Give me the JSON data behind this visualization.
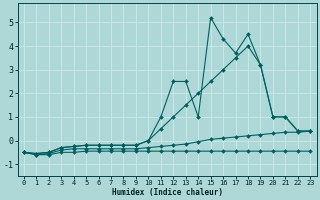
{
  "xlabel": "Humidex (Indice chaleur)",
  "bg_color": "#aed8d8",
  "grid_color": "#c8e8e8",
  "line_color": "#006060",
  "xlim": [
    -0.5,
    23.5
  ],
  "ylim": [
    -1.5,
    5.8
  ],
  "xticks": [
    0,
    1,
    2,
    3,
    4,
    5,
    6,
    7,
    8,
    9,
    10,
    11,
    12,
    13,
    14,
    15,
    16,
    17,
    18,
    19,
    20,
    21,
    22,
    23
  ],
  "yticks": [
    -1,
    0,
    1,
    2,
    3,
    4,
    5
  ],
  "series": [
    {
      "x": [
        0,
        1,
        2,
        3,
        4,
        5,
        6,
        7,
        8,
        9,
        10,
        11,
        12,
        13,
        14,
        15,
        16,
        17,
        18,
        19,
        20,
        21,
        22,
        23
      ],
      "y": [
        -0.5,
        -0.6,
        -0.6,
        -0.5,
        -0.5,
        -0.45,
        -0.45,
        -0.45,
        -0.45,
        -0.45,
        -0.45,
        -0.45,
        -0.45,
        -0.45,
        -0.45,
        -0.45,
        -0.45,
        -0.45,
        -0.45,
        -0.45,
        -0.45,
        -0.45,
        -0.45,
        -0.45
      ]
    },
    {
      "x": [
        0,
        1,
        2,
        3,
        4,
        5,
        6,
        7,
        8,
        9,
        10,
        11,
        12,
        13,
        14,
        15,
        16,
        17,
        18,
        19,
        20,
        21,
        22,
        23
      ],
      "y": [
        -0.5,
        -0.6,
        -0.55,
        -0.4,
        -0.35,
        -0.35,
        -0.35,
        -0.35,
        -0.35,
        -0.35,
        -0.3,
        -0.25,
        -0.2,
        -0.15,
        -0.05,
        0.05,
        0.1,
        0.15,
        0.2,
        0.25,
        0.3,
        0.35,
        0.35,
        0.4
      ]
    },
    {
      "x": [
        0,
        1,
        2,
        3,
        4,
        5,
        6,
        7,
        8,
        9,
        10,
        11,
        12,
        13,
        14,
        15,
        16,
        17,
        18,
        19,
        20,
        21,
        22,
        23
      ],
      "y": [
        -0.5,
        -0.55,
        -0.5,
        -0.3,
        -0.25,
        -0.2,
        -0.2,
        -0.2,
        -0.2,
        -0.2,
        0.0,
        0.5,
        1.0,
        1.5,
        2.0,
        2.5,
        3.0,
        3.5,
        4.0,
        3.2,
        1.0,
        1.0,
        0.4,
        0.4
      ]
    },
    {
      "x": [
        0,
        1,
        2,
        3,
        4,
        5,
        6,
        7,
        8,
        9,
        10,
        11,
        12,
        13,
        14,
        15,
        16,
        17,
        18,
        19,
        20,
        21,
        22,
        23
      ],
      "y": [
        -0.5,
        -0.55,
        -0.5,
        -0.3,
        -0.25,
        -0.2,
        -0.2,
        -0.2,
        -0.2,
        -0.2,
        0.0,
        1.0,
        2.5,
        2.5,
        1.0,
        5.2,
        4.3,
        3.7,
        4.5,
        3.2,
        1.0,
        1.0,
        0.4,
        0.4
      ]
    }
  ]
}
